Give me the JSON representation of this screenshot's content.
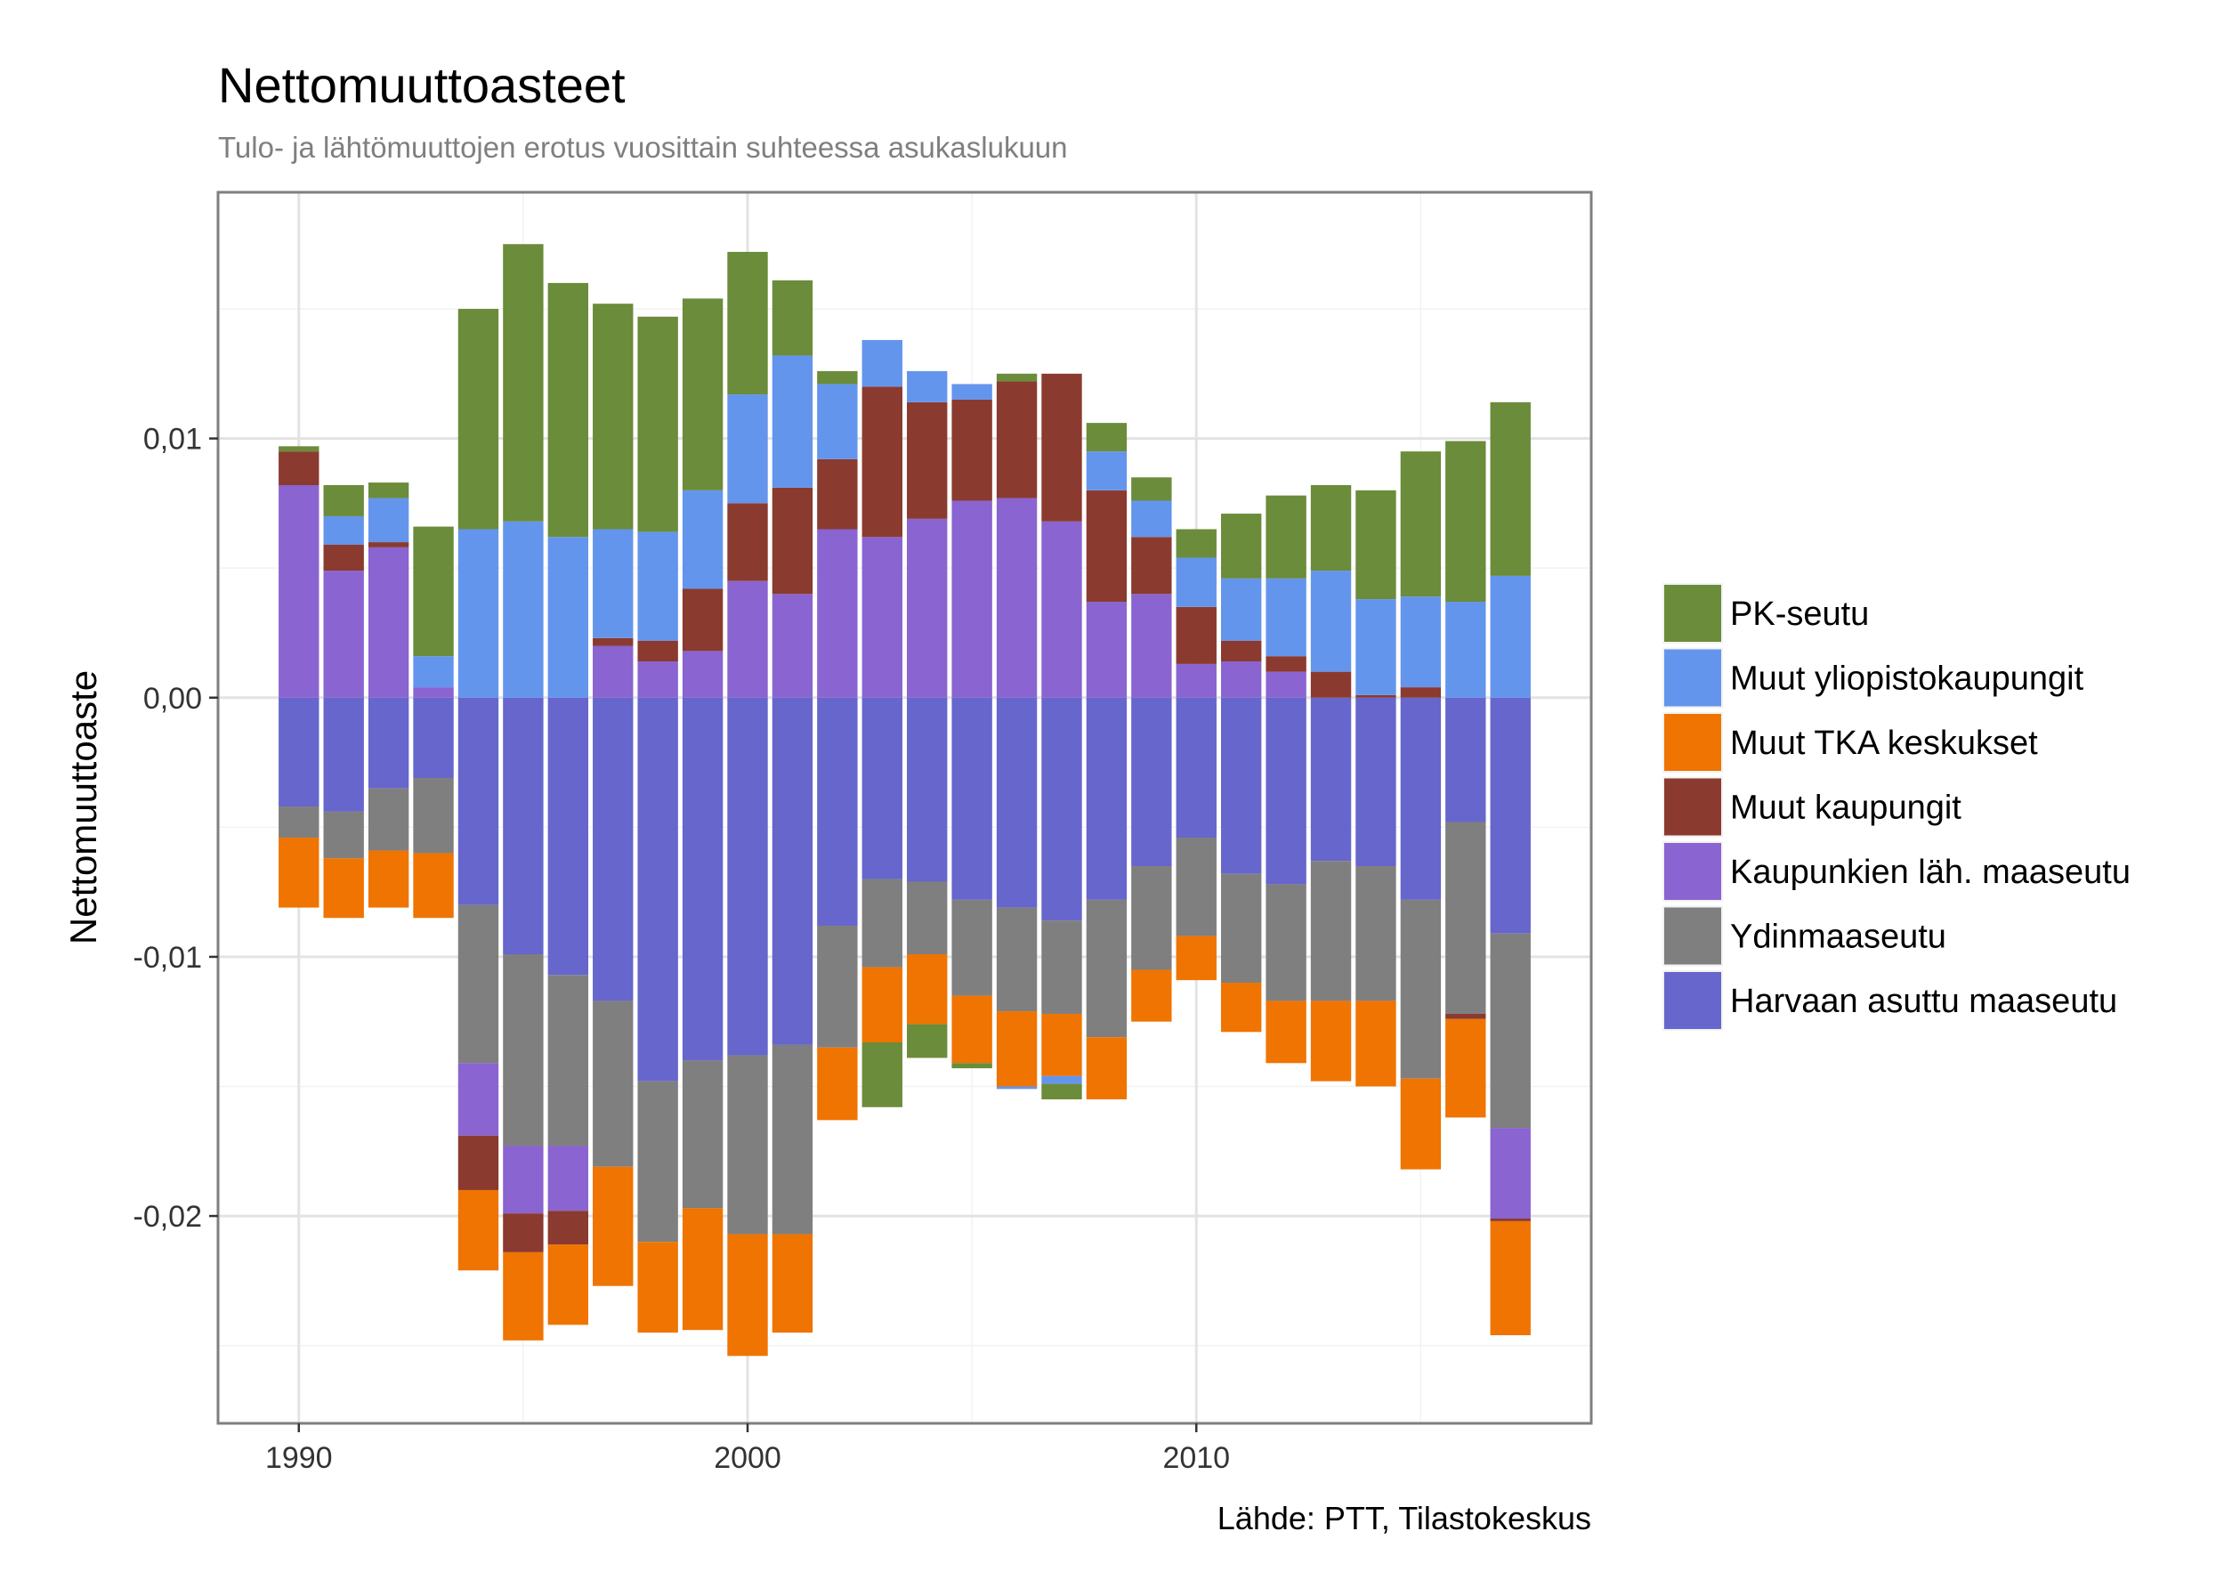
{
  "chart_data": {
    "type": "bar",
    "stacked": true,
    "title": "Nettomuuttoasteet",
    "subtitle": "Tulo- ja lähtömuuttojen erotus vuosittain suhteessa asukaslukuun",
    "ylabel": "Nettomuuttoaste",
    "xlabel": "",
    "caption": "Lähde: PTT, Tilastokeskus",
    "ylim": [
      -0.028,
      0.0195
    ],
    "xlim": [
      1988.2,
      2018.8
    ],
    "x_ticks": [
      {
        "value": 1990,
        "label": "1990"
      },
      {
        "value": 2000,
        "label": "2000"
      },
      {
        "value": 2010,
        "label": "2010"
      }
    ],
    "y_ticks": [
      {
        "value": 0.01,
        "label": "0,01"
      },
      {
        "value": 0.0,
        "label": "0,00"
      },
      {
        "value": -0.01,
        "label": "-0,01"
      },
      {
        "value": -0.02,
        "label": "-0,02"
      }
    ],
    "grid": true,
    "legend_position": "right",
    "x": [
      1990,
      1991,
      1992,
      1993,
      1994,
      1995,
      1996,
      1997,
      1998,
      1999,
      2000,
      2001,
      2002,
      2003,
      2004,
      2005,
      2006,
      2007,
      2008,
      2009,
      2010,
      2011,
      2012,
      2013,
      2014,
      2015,
      2016,
      2017
    ],
    "stack_order": [
      "Harvaan asuttu maaseutu",
      "Ydinmaaseutu",
      "Kaupunkien läh. maaseutu",
      "Muut kaupungit",
      "Muut TKA keskukset",
      "Muut yliopistokaupungit",
      "PK-seutu"
    ],
    "series": [
      {
        "name": "PK-seutu",
        "color": "#6b8c3a",
        "values": [
          0.0002,
          0.0012,
          0.0006,
          0.005,
          0.0085,
          0.0107,
          0.0098,
          0.0087,
          0.0083,
          0.0074,
          0.0055,
          0.0029,
          0.0005,
          -0.0025,
          -0.0013,
          -0.0002,
          0.0003,
          -0.0006,
          0.0011,
          0.0009,
          0.0011,
          0.0025,
          0.0032,
          0.0033,
          0.0042,
          0.0056,
          0.0062,
          0.0067
        ]
      },
      {
        "name": "Muut yliopistokaupungit",
        "color": "#6495ed",
        "values": [
          0.0,
          0.0011,
          0.0017,
          0.0012,
          0.0065,
          0.0068,
          0.0062,
          0.0042,
          0.0042,
          0.0038,
          0.0042,
          0.0051,
          0.0029,
          0.0018,
          0.0012,
          0.0006,
          -0.0001,
          -0.0003,
          0.0015,
          0.0014,
          0.0019,
          0.0024,
          0.003,
          0.0039,
          0.0037,
          0.0035,
          0.0037,
          0.0047
        ]
      },
      {
        "name": "Muut TKA keskukset",
        "color": "#ef7401",
        "values": [
          -0.0027,
          -0.0023,
          -0.0022,
          -0.0025,
          -0.0031,
          -0.0034,
          -0.0031,
          -0.0046,
          -0.0035,
          -0.0047,
          -0.0047,
          -0.0038,
          -0.0028,
          -0.0029,
          -0.0027,
          -0.0026,
          -0.0029,
          -0.0024,
          -0.0024,
          -0.002,
          -0.0017,
          -0.0019,
          -0.0024,
          -0.0031,
          -0.0033,
          -0.0035,
          -0.0038,
          -0.0044
        ]
      },
      {
        "name": "Muut kaupungit",
        "color": "#8b3a2f",
        "values": [
          0.0013,
          0.001,
          0.0002,
          0.0,
          -0.0021,
          -0.0015,
          -0.0013,
          0.0003,
          0.0008,
          0.0024,
          0.003,
          0.0041,
          0.0027,
          0.0058,
          0.0045,
          0.0039,
          0.0045,
          0.0057,
          0.0043,
          0.0022,
          0.0022,
          0.0008,
          0.0006,
          0.001,
          0.0001,
          0.0004,
          -0.0002,
          -0.0001
        ]
      },
      {
        "name": "Kaupunkien läh. maaseutu",
        "color": "#8a64d0",
        "values": [
          0.0082,
          0.0049,
          0.0058,
          0.0004,
          -0.0028,
          -0.0026,
          -0.0025,
          0.002,
          0.0014,
          0.0018,
          0.0045,
          0.004,
          0.0065,
          0.0062,
          0.0069,
          0.0076,
          0.0077,
          0.0068,
          0.0037,
          0.004,
          0.0013,
          0.0014,
          0.001,
          0.0,
          0.0,
          0.0,
          0.0,
          -0.0035
        ]
      },
      {
        "name": "Ydinmaaseutu",
        "color": "#7f7f7f",
        "values": [
          -0.0012,
          -0.0018,
          -0.0024,
          -0.0029,
          -0.0061,
          -0.0074,
          -0.0066,
          -0.0064,
          -0.0062,
          -0.0057,
          -0.0069,
          -0.0073,
          -0.0047,
          -0.0034,
          -0.0028,
          -0.0037,
          -0.004,
          -0.0036,
          -0.0053,
          -0.004,
          -0.0038,
          -0.0042,
          -0.0045,
          -0.0054,
          -0.0052,
          -0.0069,
          -0.0074,
          -0.0075
        ]
      },
      {
        "name": "Harvaan asuttu maaseutu",
        "color": "#6666cc",
        "values": [
          -0.0042,
          -0.0044,
          -0.0035,
          -0.0031,
          -0.008,
          -0.0099,
          -0.0107,
          -0.0117,
          -0.0148,
          -0.014,
          -0.0138,
          -0.0134,
          -0.0088,
          -0.007,
          -0.0071,
          -0.0078,
          -0.0081,
          -0.0086,
          -0.0078,
          -0.0065,
          -0.0054,
          -0.0068,
          -0.0072,
          -0.0063,
          -0.0065,
          -0.0078,
          -0.0048,
          -0.0091
        ]
      }
    ]
  }
}
